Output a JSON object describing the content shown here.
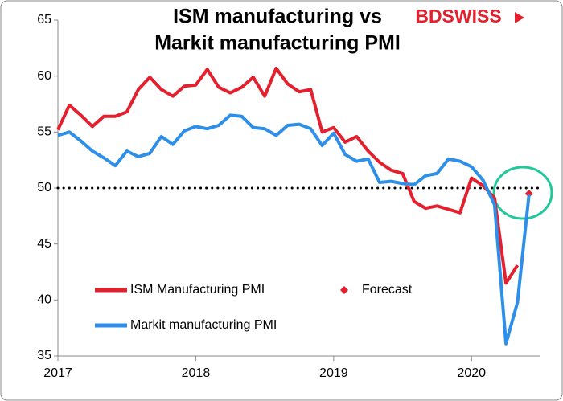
{
  "chart_data": {
    "type": "line",
    "title": [
      "ISM manufacturing vs",
      "Markit manufacturing PMI"
    ],
    "logo": "BDSWISS",
    "x": [
      2017,
      2017.0833,
      2017.1667,
      2017.25,
      2017.3333,
      2017.4167,
      2017.5,
      2017.5833,
      2017.6667,
      2017.75,
      2017.8333,
      2017.9167,
      2018,
      2018.0833,
      2018.1667,
      2018.25,
      2018.3333,
      2018.4167,
      2018.5,
      2018.5833,
      2018.6667,
      2018.75,
      2018.8333,
      2018.9167,
      2019,
      2019.0833,
      2019.1667,
      2019.25,
      2019.3333,
      2019.4167,
      2019.5,
      2019.5833,
      2019.6667,
      2019.75,
      2019.8333,
      2019.9167,
      2020,
      2020.0833,
      2020.1667,
      2020.25,
      2020.3333,
      2020.4167
    ],
    "series": [
      {
        "name": "ISM Manufacturing PMI",
        "color": "#e5202e",
        "style": "line",
        "values": [
          55.2,
          57.4,
          56.5,
          55.5,
          56.4,
          56.4,
          56.8,
          58.8,
          59.9,
          58.8,
          58.2,
          59.1,
          59.2,
          60.6,
          59.0,
          58.5,
          59.0,
          59.9,
          58.2,
          60.7,
          59.3,
          58.6,
          58.8,
          55.0,
          55.4,
          54.1,
          54.6,
          53.3,
          52.3,
          51.6,
          51.3,
          48.8,
          48.2,
          48.4,
          48.1,
          47.8,
          50.9,
          50.2,
          49.1,
          41.5,
          43.1,
          null
        ]
      },
      {
        "name": "Forecast",
        "color": "#e5202e",
        "style": "marker",
        "values": [
          null,
          null,
          null,
          null,
          null,
          null,
          null,
          null,
          null,
          null,
          null,
          null,
          null,
          null,
          null,
          null,
          null,
          null,
          null,
          null,
          null,
          null,
          null,
          null,
          null,
          null,
          null,
          null,
          null,
          null,
          null,
          null,
          null,
          null,
          null,
          null,
          null,
          null,
          null,
          null,
          null,
          49.5
        ]
      },
      {
        "name": "Markit manufacturing PMI",
        "color": "#2e8fe8",
        "style": "line",
        "values": [
          54.7,
          55.0,
          54.2,
          53.3,
          52.7,
          52.0,
          53.3,
          52.8,
          53.1,
          54.6,
          53.9,
          55.1,
          55.5,
          55.3,
          55.6,
          56.5,
          56.4,
          55.4,
          55.3,
          54.7,
          55.6,
          55.7,
          55.3,
          53.8,
          54.9,
          53.0,
          52.4,
          52.6,
          50.5,
          50.6,
          50.4,
          50.3,
          51.1,
          51.3,
          52.6,
          52.4,
          51.9,
          50.7,
          48.5,
          36.1,
          39.8,
          49.4
        ]
      }
    ],
    "xlim": [
      2017,
      2020.5
    ],
    "xticks": [
      2017,
      2018,
      2019,
      2020
    ],
    "ylim": [
      35,
      65
    ],
    "yticks": [
      35,
      40,
      45,
      50,
      55,
      60,
      65
    ],
    "hline": 50,
    "grid": false
  }
}
